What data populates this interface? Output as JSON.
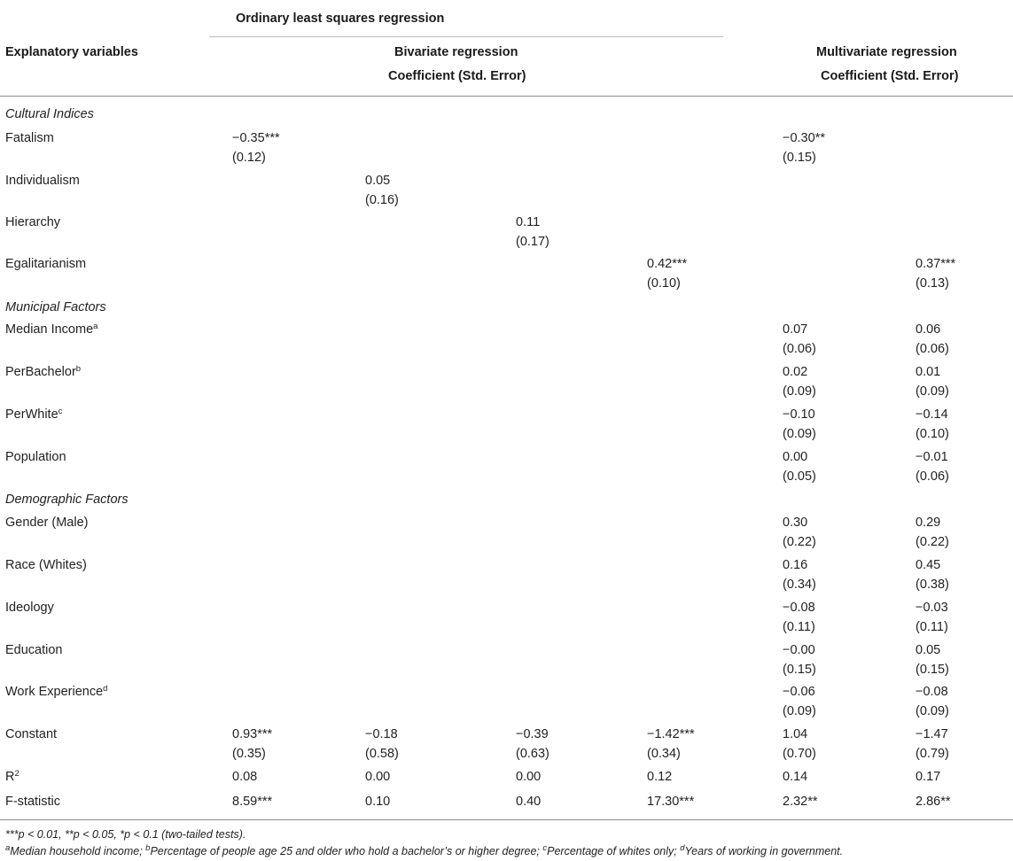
{
  "header": {
    "ols": "Ordinary least squares regression",
    "explanatory": "Explanatory variables",
    "bivariate": "Bivariate regression",
    "bivariate_coef": "Coefficient (Std. Error)",
    "multivariate": "Multivariate regression",
    "multivariate_coef": "Coefficient (Std. Error)"
  },
  "sections": {
    "cultural": "Cultural Indices",
    "municipal": "Municipal Factors",
    "demographic": "Demographic Factors"
  },
  "rows": [
    {
      "label": "Fatalism",
      "sup": "",
      "cells": [
        [
          "−0.35***",
          "(0.12)"
        ],
        null,
        null,
        null,
        [
          "−0.30**",
          "(0.15)"
        ],
        null
      ]
    },
    {
      "label": "Individualism",
      "sup": "",
      "cells": [
        null,
        [
          "0.05",
          "(0.16)"
        ],
        null,
        null,
        null,
        null
      ]
    },
    {
      "label": "Hierarchy",
      "sup": "",
      "cells": [
        null,
        null,
        [
          "0.11",
          "(0.17)"
        ],
        null,
        null,
        null
      ]
    },
    {
      "label": "Egalitarianism",
      "sup": "",
      "cells": [
        null,
        null,
        null,
        [
          "0.42***",
          "(0.10)"
        ],
        null,
        [
          "0.37***",
          "(0.13)"
        ]
      ]
    },
    {
      "label": "Median Income",
      "sup": "a",
      "cells": [
        null,
        null,
        null,
        null,
        [
          "0.07",
          "(0.06)"
        ],
        [
          "0.06",
          "(0.06)"
        ]
      ]
    },
    {
      "label": "PerBachelor",
      "sup": "b",
      "cells": [
        null,
        null,
        null,
        null,
        [
          "0.02",
          "(0.09)"
        ],
        [
          "0.01",
          "(0.09)"
        ]
      ]
    },
    {
      "label": "PerWhite",
      "sup": "c",
      "cells": [
        null,
        null,
        null,
        null,
        [
          "−0.10",
          "(0.09)"
        ],
        [
          "−0.14",
          "(0.10)"
        ]
      ]
    },
    {
      "label": "Population",
      "sup": "",
      "cells": [
        null,
        null,
        null,
        null,
        [
          "0.00",
          "(0.05)"
        ],
        [
          "−0.01",
          "(0.06)"
        ]
      ]
    },
    {
      "label": "Gender (Male)",
      "sup": "",
      "cells": [
        null,
        null,
        null,
        null,
        [
          "0.30",
          "(0.22)"
        ],
        [
          "0.29",
          "(0.22)"
        ]
      ]
    },
    {
      "label": "Race (Whites)",
      "sup": "",
      "cells": [
        null,
        null,
        null,
        null,
        [
          "0.16",
          "(0.34)"
        ],
        [
          "0.45",
          "(0.38)"
        ]
      ]
    },
    {
      "label": "Ideology",
      "sup": "",
      "cells": [
        null,
        null,
        null,
        null,
        [
          "−0.08",
          "(0.11)"
        ],
        [
          "−0.03",
          "(0.11)"
        ]
      ]
    },
    {
      "label": "Education",
      "sup": "",
      "cells": [
        null,
        null,
        null,
        null,
        [
          "−0.00",
          "(0.15)"
        ],
        [
          "0.05",
          "(0.15)"
        ]
      ]
    },
    {
      "label": "Work Experience",
      "sup": "d",
      "cells": [
        null,
        null,
        null,
        null,
        [
          "−0.06",
          "(0.09)"
        ],
        [
          "−0.08",
          "(0.09)"
        ]
      ]
    },
    {
      "label": "Constant",
      "sup": "",
      "cells": [
        [
          "0.93***",
          "(0.35)"
        ],
        [
          "−0.18",
          "(0.58)"
        ],
        [
          "−0.39",
          "(0.63)"
        ],
        [
          "−1.42***",
          "(0.34)"
        ],
        [
          "1.04",
          "(0.70)"
        ],
        [
          "−1.47",
          "(0.79)"
        ]
      ]
    },
    {
      "label": "R",
      "sup": "2",
      "cells": [
        [
          "0.08"
        ],
        [
          "0.00"
        ],
        [
          "0.00"
        ],
        [
          "0.12"
        ],
        [
          "0.14"
        ],
        [
          "0.17"
        ]
      ]
    },
    {
      "label": "F-statistic",
      "sup": "",
      "cells": [
        [
          "8.59***"
        ],
        [
          "0.10"
        ],
        [
          "0.40"
        ],
        [
          "17.30***"
        ],
        [
          "2.32**"
        ],
        [
          "2.86**"
        ]
      ]
    }
  ],
  "footnotes": {
    "significance": "***p < 0.01, **p < 0.05, *p < 0.1 (two-tailed tests).",
    "a_mark": "a",
    "a_text": "Median household income; ",
    "b_mark": "b",
    "b_text": "Percentage of people age 25 and older who hold a bachelor’s or higher degree; ",
    "c_mark": "c",
    "c_text": "Percentage of whites only; ",
    "d_mark": "d",
    "d_text": "Years of working in government."
  }
}
